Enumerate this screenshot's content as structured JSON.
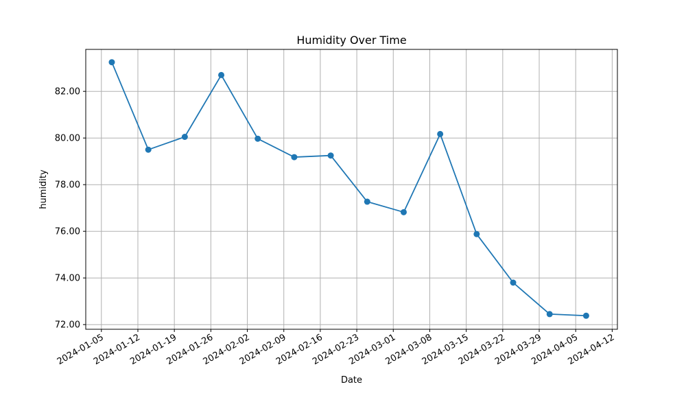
{
  "chart_data": {
    "type": "line",
    "title": "Humidity Over Time",
    "xlabel": "Date",
    "ylabel": "humidity",
    "x_tick_labels": [
      "2024-01-05",
      "2024-01-12",
      "2024-01-19",
      "2024-01-26",
      "2024-02-02",
      "2024-02-09",
      "2024-02-16",
      "2024-02-23",
      "2024-03-01",
      "2024-03-08",
      "2024-03-15",
      "2024-03-22",
      "2024-03-29",
      "2024-04-05",
      "2024-04-12"
    ],
    "y_ticks": [
      72,
      74,
      76,
      78,
      80,
      82
    ],
    "y_tick_labels": [
      "72.00",
      "74.00",
      "76.00",
      "78.00",
      "80.00",
      "82.00"
    ],
    "xlim": [
      "2024-01-02",
      "2024-04-13"
    ],
    "ylim": [
      71.8,
      83.8
    ],
    "grid": true,
    "series": [
      {
        "color": "#1f77b4",
        "marker": "circle",
        "x": [
          "2024-01-07",
          "2024-01-14",
          "2024-01-21",
          "2024-01-28",
          "2024-02-04",
          "2024-02-11",
          "2024-02-18",
          "2024-02-25",
          "2024-03-03",
          "2024-03-10",
          "2024-03-17",
          "2024-03-24",
          "2024-03-31",
          "2024-04-07"
        ],
        "y": [
          83.25,
          79.5,
          80.05,
          82.7,
          79.97,
          79.18,
          79.25,
          77.27,
          76.82,
          80.17,
          75.88,
          73.8,
          72.45,
          72.38
        ]
      }
    ]
  }
}
